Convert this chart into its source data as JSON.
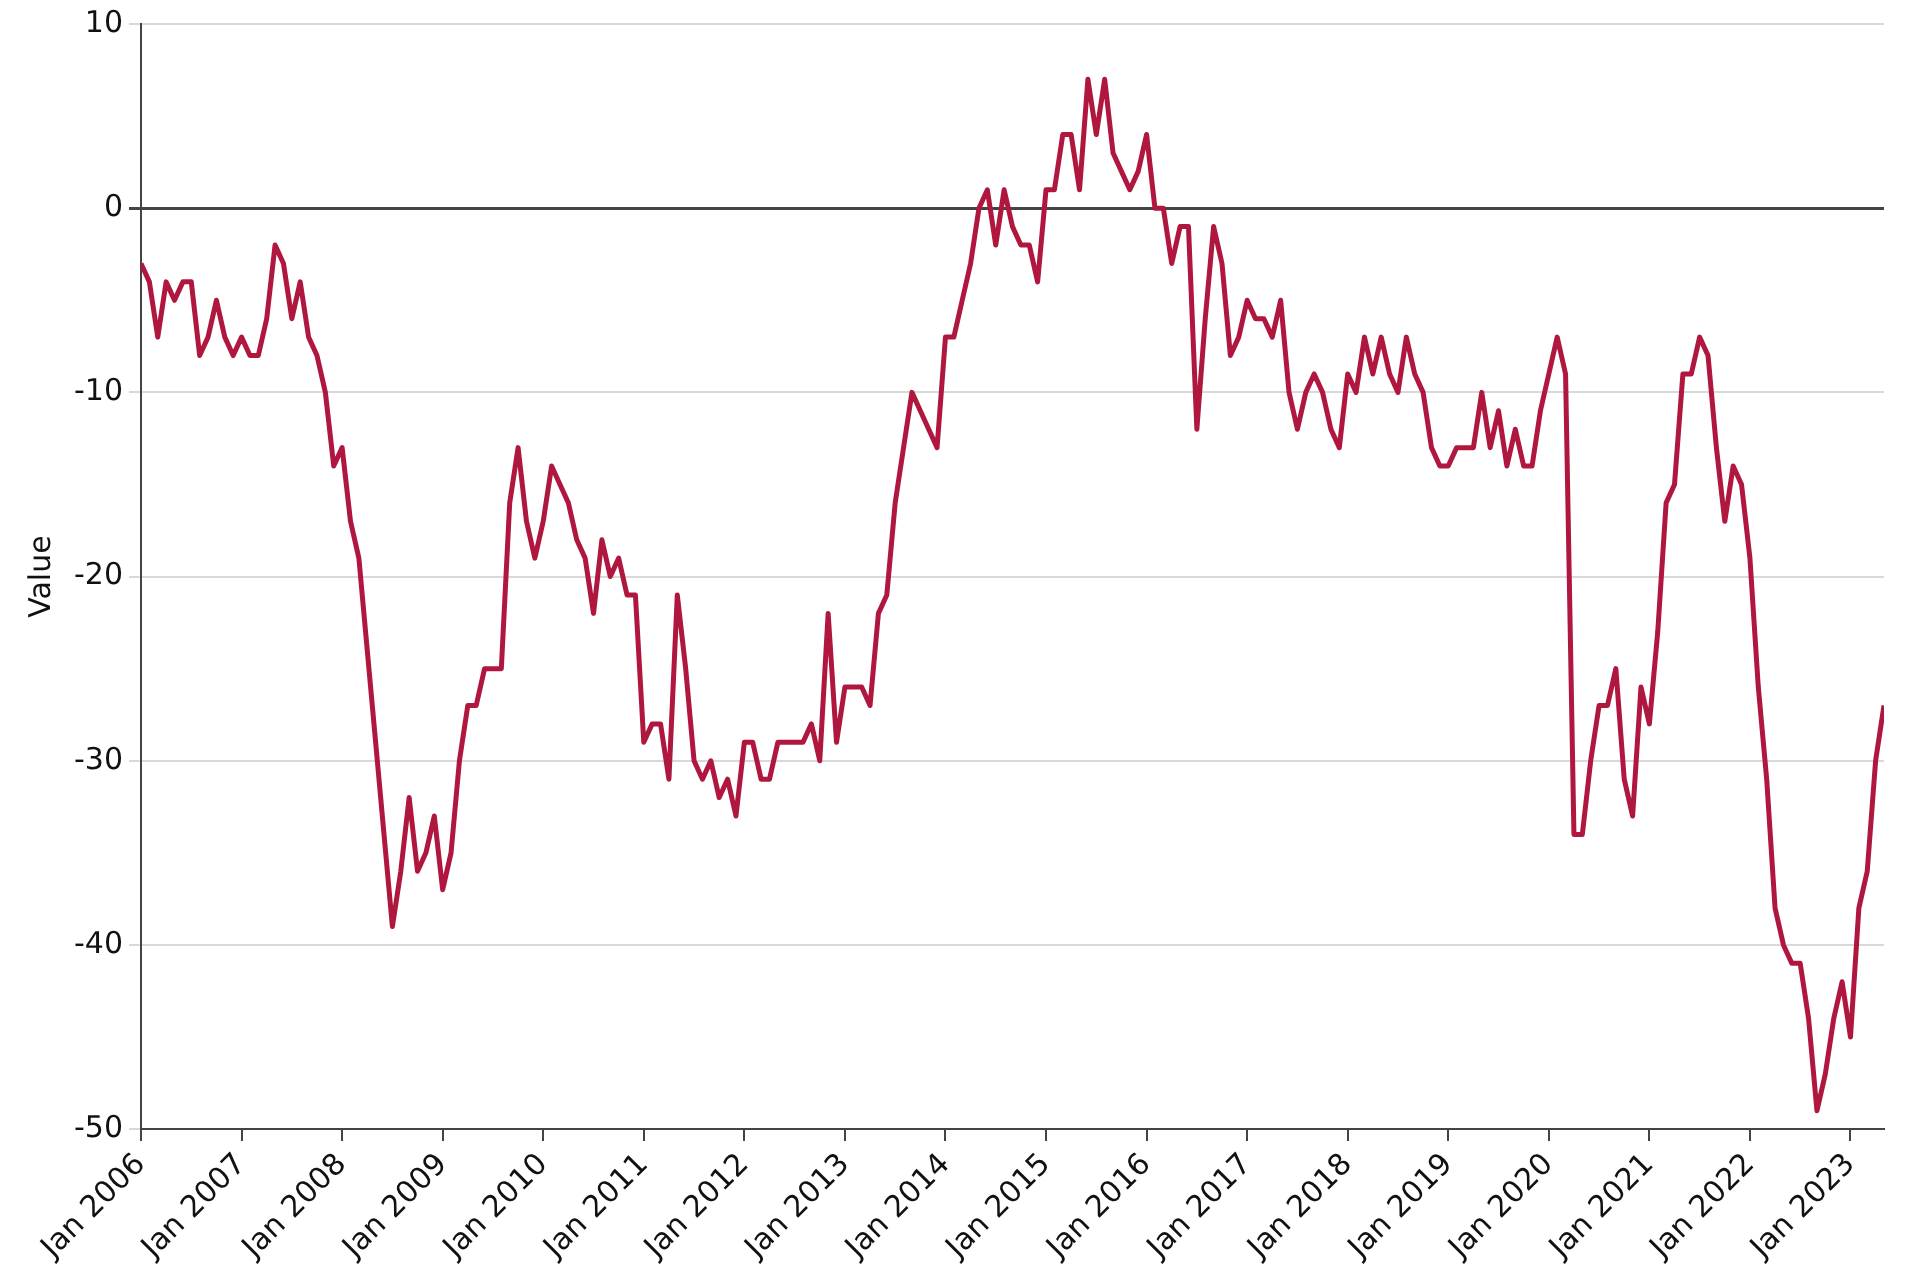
{
  "chart_data": {
    "type": "line",
    "ylabel": "Value",
    "grid": "y",
    "legend": false,
    "marker": "none",
    "line_style": "solid",
    "xlim": [
      "2006-01",
      "2023-05"
    ],
    "ylim": [
      -50,
      10
    ],
    "yticks": [
      -50,
      -40,
      -30,
      -20,
      -10,
      0,
      10
    ],
    "xticks": [
      {
        "value": "2006-01",
        "label": "Jan 2006"
      },
      {
        "value": "2007-01",
        "label": "Jan 2007"
      },
      {
        "value": "2008-01",
        "label": "Jan 2008"
      },
      {
        "value": "2009-01",
        "label": "Jan 2009"
      },
      {
        "value": "2010-01",
        "label": "Jan 2010"
      },
      {
        "value": "2011-01",
        "label": "Jan 2011"
      },
      {
        "value": "2012-01",
        "label": "Jan 2012"
      },
      {
        "value": "2013-01",
        "label": "Jan 2013"
      },
      {
        "value": "2014-01",
        "label": "Jan 2014"
      },
      {
        "value": "2015-01",
        "label": "Jan 2015"
      },
      {
        "value": "2016-01",
        "label": "Jan 2016"
      },
      {
        "value": "2017-01",
        "label": "Jan 2017"
      },
      {
        "value": "2018-01",
        "label": "Jan 2018"
      },
      {
        "value": "2019-01",
        "label": "Jan 2019"
      },
      {
        "value": "2020-01",
        "label": "Jan 2020"
      },
      {
        "value": "2021-01",
        "label": "Jan 2021"
      },
      {
        "value": "2022-01",
        "label": "Jan 2022"
      },
      {
        "value": "2023-01",
        "label": "Jan 2023"
      }
    ],
    "x": [
      "2006-01",
      "2006-02",
      "2006-03",
      "2006-04",
      "2006-05",
      "2006-06",
      "2006-07",
      "2006-08",
      "2006-09",
      "2006-10",
      "2006-11",
      "2006-12",
      "2007-01",
      "2007-02",
      "2007-03",
      "2007-04",
      "2007-05",
      "2007-06",
      "2007-07",
      "2007-08",
      "2007-09",
      "2007-10",
      "2007-11",
      "2007-12",
      "2008-01",
      "2008-02",
      "2008-03",
      "2008-04",
      "2008-05",
      "2008-06",
      "2008-07",
      "2008-08",
      "2008-09",
      "2008-10",
      "2008-11",
      "2008-12",
      "2009-01",
      "2009-02",
      "2009-03",
      "2009-04",
      "2009-05",
      "2009-06",
      "2009-07",
      "2009-08",
      "2009-09",
      "2009-10",
      "2009-11",
      "2009-12",
      "2010-01",
      "2010-02",
      "2010-03",
      "2010-04",
      "2010-05",
      "2010-06",
      "2010-07",
      "2010-08",
      "2010-09",
      "2010-10",
      "2010-11",
      "2010-12",
      "2011-01",
      "2011-02",
      "2011-03",
      "2011-04",
      "2011-05",
      "2011-06",
      "2011-07",
      "2011-08",
      "2011-09",
      "2011-10",
      "2011-11",
      "2011-12",
      "2012-01",
      "2012-02",
      "2012-03",
      "2012-04",
      "2012-05",
      "2012-06",
      "2012-07",
      "2012-08",
      "2012-09",
      "2012-10",
      "2012-11",
      "2012-12",
      "2013-01",
      "2013-02",
      "2013-03",
      "2013-04",
      "2013-05",
      "2013-06",
      "2013-07",
      "2013-08",
      "2013-09",
      "2013-10",
      "2013-11",
      "2013-12",
      "2014-01",
      "2014-02",
      "2014-03",
      "2014-04",
      "2014-05",
      "2014-06",
      "2014-07",
      "2014-08",
      "2014-09",
      "2014-10",
      "2014-11",
      "2014-12",
      "2015-01",
      "2015-02",
      "2015-03",
      "2015-04",
      "2015-05",
      "2015-06",
      "2015-07",
      "2015-08",
      "2015-09",
      "2015-10",
      "2015-11",
      "2015-12",
      "2016-01",
      "2016-02",
      "2016-03",
      "2016-04",
      "2016-05",
      "2016-06",
      "2016-07",
      "2016-08",
      "2016-09",
      "2016-10",
      "2016-11",
      "2016-12",
      "2017-01",
      "2017-02",
      "2017-03",
      "2017-04",
      "2017-05",
      "2017-06",
      "2017-07",
      "2017-08",
      "2017-09",
      "2017-10",
      "2017-11",
      "2017-12",
      "2018-01",
      "2018-02",
      "2018-03",
      "2018-04",
      "2018-05",
      "2018-06",
      "2018-07",
      "2018-08",
      "2018-09",
      "2018-10",
      "2018-11",
      "2018-12",
      "2019-01",
      "2019-02",
      "2019-03",
      "2019-04",
      "2019-05",
      "2019-06",
      "2019-07",
      "2019-08",
      "2019-09",
      "2019-10",
      "2019-11",
      "2019-12",
      "2020-01",
      "2020-02",
      "2020-03",
      "2020-04",
      "2020-05",
      "2020-06",
      "2020-07",
      "2020-08",
      "2020-09",
      "2020-10",
      "2020-11",
      "2020-12",
      "2021-01",
      "2021-02",
      "2021-03",
      "2021-04",
      "2021-05",
      "2021-06",
      "2021-07",
      "2021-08",
      "2021-09",
      "2021-10",
      "2021-11",
      "2021-12",
      "2022-01",
      "2022-02",
      "2022-03",
      "2022-04",
      "2022-05",
      "2022-06",
      "2022-07",
      "2022-08",
      "2022-09",
      "2022-10",
      "2022-11",
      "2022-12",
      "2023-01",
      "2023-02",
      "2023-03",
      "2023-04",
      "2023-05"
    ],
    "series": [
      {
        "color": "#b0173f",
        "values": [
          -3,
          -4,
          -7,
          -4,
          -5,
          -4,
          -4,
          -8,
          -7,
          -5,
          -7,
          -8,
          -7,
          -8,
          -8,
          -6,
          -2,
          -3,
          -6,
          -4,
          -7,
          -8,
          -10,
          -14,
          -13,
          -17,
          -19,
          -24,
          -29,
          -34,
          -39,
          -36,
          -32,
          -36,
          -35,
          -33,
          -37,
          -35,
          -30,
          -27,
          -27,
          -25,
          -25,
          -25,
          -16,
          -13,
          -17,
          -19,
          -17,
          -14,
          -15,
          -16,
          -18,
          -19,
          -22,
          -18,
          -20,
          -19,
          -21,
          -21,
          -29,
          -28,
          -28,
          -31,
          -21,
          -25,
          -30,
          -31,
          -30,
          -32,
          -31,
          -33,
          -29,
          -29,
          -31,
          -31,
          -29,
          -29,
          -29,
          -29,
          -28,
          -30,
          -22,
          -29,
          -26,
          -26,
          -26,
          -27,
          -22,
          -21,
          -16,
          -13,
          -10,
          -11,
          -12,
          -13,
          -7,
          -7,
          -5,
          -3,
          0,
          1,
          -2,
          1,
          -1,
          -2,
          -2,
          -4,
          1,
          1,
          4,
          4,
          1,
          7,
          4,
          7,
          3,
          2,
          1,
          2,
          4,
          0,
          0,
          -3,
          -1,
          -1,
          -12,
          -6,
          -1,
          -3,
          -8,
          -7,
          -5,
          -6,
          -6,
          -7,
          -5,
          -10,
          -12,
          -10,
          -9,
          -10,
          -12,
          -13,
          -9,
          -10,
          -7,
          -9,
          -7,
          -9,
          -10,
          -7,
          -9,
          -10,
          -13,
          -14,
          -14,
          -13,
          -13,
          -13,
          -10,
          -13,
          -11,
          -14,
          -12,
          -14,
          -14,
          -11,
          -9,
          -7,
          -9,
          -34,
          -34,
          -30,
          -27,
          -27,
          -25,
          -31,
          -33,
          -26,
          -28,
          -23,
          -16,
          -15,
          -9,
          -9,
          -7,
          -8,
          -13,
          -17,
          -14,
          -15,
          -19,
          -26,
          -31,
          -38,
          -40,
          -41,
          -41,
          -44,
          -49,
          -47,
          -44,
          -42,
          -45,
          -38,
          -36,
          -30,
          -27
        ]
      }
    ]
  }
}
